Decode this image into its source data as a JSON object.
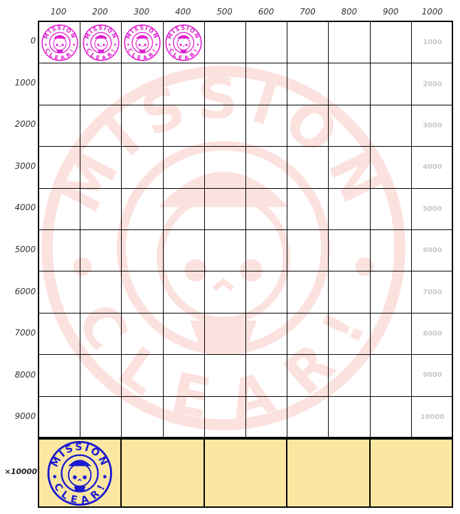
{
  "columns": [
    "100",
    "200",
    "300",
    "400",
    "500",
    "600",
    "700",
    "800",
    "900",
    "1000"
  ],
  "rows": [
    "0",
    "1000",
    "2000",
    "3000",
    "4000",
    "5000",
    "6000",
    "7000",
    "8000",
    "9000"
  ],
  "row_totals": [
    "1000",
    "2000",
    "3000",
    "4000",
    "5000",
    "6000",
    "7000",
    "8000",
    "9000",
    "10000"
  ],
  "stamped_count": 4,
  "stamp": {
    "top_text": "MISSION",
    "bottom_text": "CLEAR!",
    "color": "#e020d0"
  },
  "bonus": {
    "label": "×10000",
    "stamped_count": 1,
    "cells": 5,
    "color": "#1a1ad0",
    "background": "#fbe7a1"
  },
  "watermark": {
    "color": "#f08070",
    "top_text": "MISSION",
    "bottom_text": "CLEAR!"
  }
}
